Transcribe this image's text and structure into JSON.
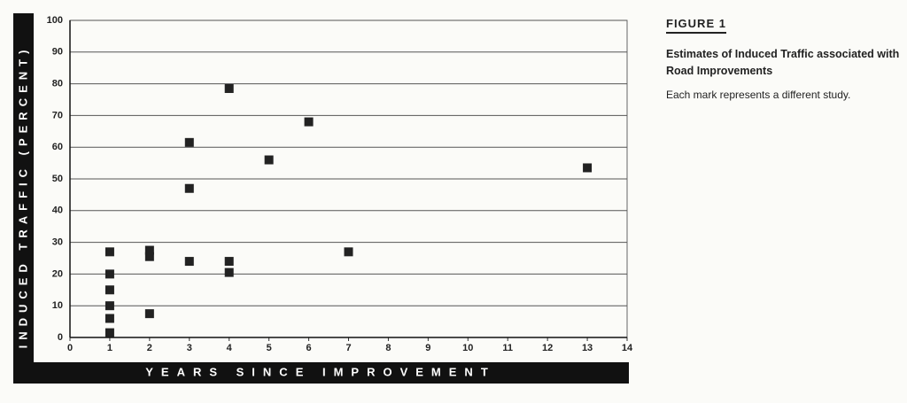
{
  "chart_data": {
    "type": "scatter",
    "figure_label": "FIGURE 1",
    "title": "Estimates of Induced Traffic associated with Road Improvements",
    "subtitle": "Each mark represents a different study.",
    "xlabel": "YEARS SINCE IMPROVEMENT",
    "ylabel": "INDUCED TRAFFIC (PERCENT)",
    "color": "#222222",
    "grid": true,
    "x": [
      1,
      1,
      1,
      1,
      1,
      1,
      2,
      2,
      2,
      3,
      3,
      3,
      4,
      4,
      4,
      5,
      6,
      7,
      13
    ],
    "values": [
      27,
      20,
      15,
      10,
      6,
      1.5,
      27.5,
      25.5,
      7.5,
      61.5,
      47,
      24,
      78.5,
      24,
      20.5,
      56,
      68,
      27,
      53.5
    ],
    "xlim": [
      0,
      14
    ],
    "ylim": [
      0,
      100
    ],
    "xticks": [
      0,
      1,
      2,
      3,
      4,
      5,
      6,
      7,
      8,
      9,
      10,
      11,
      12,
      13,
      14
    ],
    "yticks": [
      0,
      10,
      20,
      30,
      40,
      50,
      60,
      70,
      80,
      90,
      100
    ]
  }
}
